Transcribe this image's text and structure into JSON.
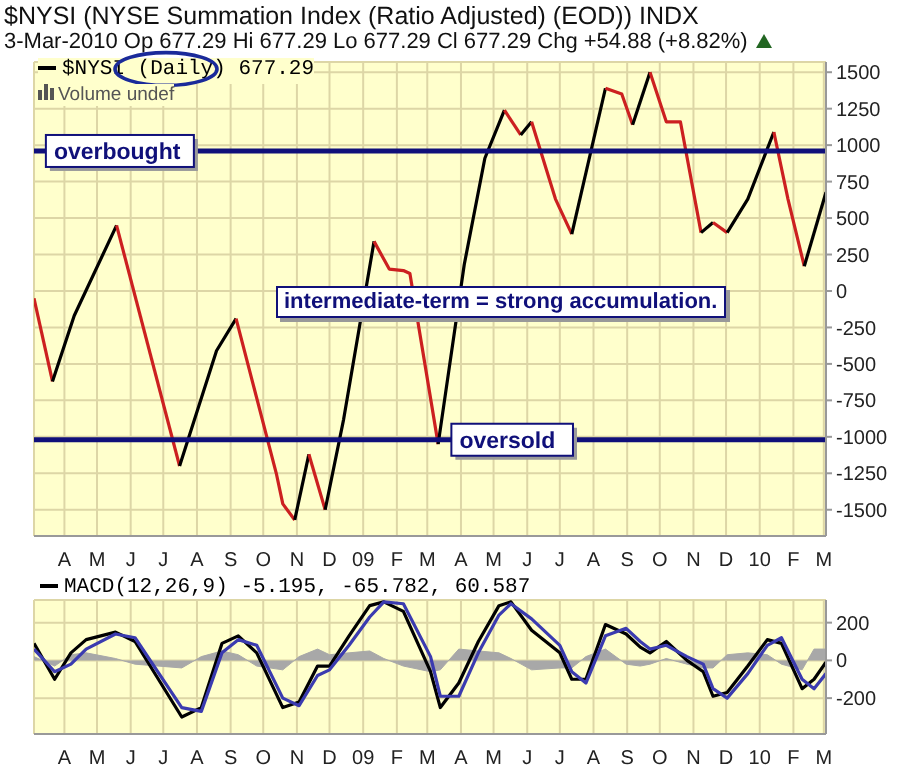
{
  "chart_data": [
    {
      "type": "line",
      "title": "$NYSI (NYSE Summation Index (Ratio Adjusted) (EOD)) INDX",
      "subtitle": "3-Mar-2010 Op 677.29 Hi 677.29 Lo 677.29 Cl 677.29 Chg +54.88 (+8.82%)",
      "annotations": [
        "$NYSI (Daily) 677.29",
        "Volume undef",
        "intermediate-term = strong accumulation."
      ],
      "xlim": [
        "2008-03-04",
        "2010-03-03"
      ],
      "xticks": [
        {
          "value": "2008-04",
          "label": "A"
        },
        {
          "value": "2008-05",
          "label": "M"
        },
        {
          "value": "2008-06",
          "label": "J"
        },
        {
          "value": "2008-07",
          "label": "J"
        },
        {
          "value": "2008-08",
          "label": "A"
        },
        {
          "value": "2008-09",
          "label": "S"
        },
        {
          "value": "2008-10",
          "label": "O"
        },
        {
          "value": "2008-11",
          "label": "N"
        },
        {
          "value": "2008-12",
          "label": "D"
        },
        {
          "value": "2009-01",
          "label": "09"
        },
        {
          "value": "2009-02",
          "label": "F"
        },
        {
          "value": "2009-03",
          "label": "M"
        },
        {
          "value": "2009-04",
          "label": "A"
        },
        {
          "value": "2009-05",
          "label": "M"
        },
        {
          "value": "2009-06",
          "label": "J"
        },
        {
          "value": "2009-07",
          "label": "J"
        },
        {
          "value": "2009-08",
          "label": "A"
        },
        {
          "value": "2009-09",
          "label": "S"
        },
        {
          "value": "2009-10",
          "label": "O"
        },
        {
          "value": "2009-11",
          "label": "N"
        },
        {
          "value": "2009-12",
          "label": "D"
        },
        {
          "value": "2010-01",
          "label": "10"
        },
        {
          "value": "2010-02",
          "label": "F"
        },
        {
          "value": "2010-03",
          "label": "M"
        }
      ],
      "ylim": [
        -1680,
        1570
      ],
      "yticks": [
        -1500,
        -1250,
        -1000,
        -750,
        -500,
        -250,
        0,
        250,
        500,
        750,
        1000,
        1250,
        1500
      ],
      "grid": true,
      "ref_lines": [
        {
          "axis": "y",
          "value": 960,
          "label": "overbought",
          "color": "#10107a"
        },
        {
          "axis": "y",
          "value": -1020,
          "label": "oversold",
          "color": "#10107a"
        }
      ],
      "series": [
        {
          "color": "#cc2020",
          "x": [
            "2008-03-04",
            "2008-03-21"
          ],
          "values": [
            -50,
            -620
          ]
        },
        {
          "color": "#000000",
          "x": [
            "2008-03-21",
            "2008-04-10",
            "2008-05-19"
          ],
          "values": [
            -620,
            -170,
            450
          ]
        },
        {
          "color": "#cc2020",
          "x": [
            "2008-05-19",
            "2008-07-16"
          ],
          "values": [
            450,
            -1200
          ]
        },
        {
          "color": "#000000",
          "x": [
            "2008-07-16",
            "2008-08-19",
            "2008-09-06"
          ],
          "values": [
            -1200,
            -410,
            -190
          ]
        },
        {
          "color": "#cc2020",
          "x": [
            "2008-09-06",
            "2008-10-13",
            "2008-10-19",
            "2008-10-30"
          ],
          "values": [
            -190,
            -1250,
            -1460,
            -1570
          ]
        },
        {
          "color": "#000000",
          "x": [
            "2008-10-30",
            "2008-11-12"
          ],
          "values": [
            -1570,
            -1120
          ]
        },
        {
          "color": "#cc2020",
          "x": [
            "2008-11-12",
            "2008-11-27"
          ],
          "values": [
            -1120,
            -1500
          ]
        },
        {
          "color": "#000000",
          "x": [
            "2008-11-27",
            "2008-12-14",
            "2009-01-11"
          ],
          "values": [
            -1500,
            -880,
            340
          ]
        },
        {
          "color": "#cc2020",
          "x": [
            "2009-01-11",
            "2009-01-25",
            "2009-02-07",
            "2009-02-13",
            "2009-03-11"
          ],
          "values": [
            340,
            150,
            140,
            120,
            -1050
          ]
        },
        {
          "color": "#000000",
          "x": [
            "2009-03-11",
            "2009-04-04",
            "2009-04-23",
            "2009-05-11"
          ],
          "values": [
            -1050,
            180,
            910,
            1240
          ]
        },
        {
          "color": "#cc2020",
          "x": [
            "2009-05-11",
            "2009-05-26"
          ],
          "values": [
            1240,
            1070
          ]
        },
        {
          "color": "#000000",
          "x": [
            "2009-05-26",
            "2009-06-05"
          ],
          "values": [
            1070,
            1160
          ]
        },
        {
          "color": "#cc2020",
          "x": [
            "2009-06-05",
            "2009-06-27",
            "2009-07-12"
          ],
          "values": [
            1160,
            630,
            390
          ]
        },
        {
          "color": "#000000",
          "x": [
            "2009-07-12",
            "2009-08-12"
          ],
          "values": [
            390,
            1390
          ]
        },
        {
          "color": "#cc2020",
          "x": [
            "2009-08-12",
            "2009-08-27",
            "2009-09-06"
          ],
          "values": [
            1390,
            1350,
            1140
          ]
        },
        {
          "color": "#000000",
          "x": [
            "2009-09-06",
            "2009-09-22"
          ],
          "values": [
            1140,
            1500
          ]
        },
        {
          "color": "#cc2020",
          "x": [
            "2009-09-22",
            "2009-10-07",
            "2009-10-20",
            "2009-11-08"
          ],
          "values": [
            1500,
            1160,
            1160,
            400
          ]
        },
        {
          "color": "#000000",
          "x": [
            "2009-11-08",
            "2009-11-19"
          ],
          "values": [
            400,
            470
          ]
        },
        {
          "color": "#cc2020",
          "x": [
            "2009-11-19",
            "2009-12-02"
          ],
          "values": [
            470,
            400
          ]
        },
        {
          "color": "#000000",
          "x": [
            "2009-12-02",
            "2009-12-21",
            "2010-01-14"
          ],
          "values": [
            400,
            630,
            1090
          ]
        },
        {
          "color": "#cc2020",
          "x": [
            "2010-01-14",
            "2010-01-27",
            "2010-02-11"
          ],
          "values": [
            1090,
            630,
            170
          ]
        },
        {
          "color": "#000000",
          "x": [
            "2010-02-11",
            "2010-03-03"
          ],
          "values": [
            170,
            677.29
          ]
        }
      ]
    },
    {
      "type": "line",
      "title": "MACD(12,26,9) -5.195, -65.782, 60.587",
      "xlim": [
        "2008-03-04",
        "2010-03-03"
      ],
      "xticks": [
        {
          "value": "2008-04",
          "label": "A"
        },
        {
          "value": "2008-05",
          "label": "M"
        },
        {
          "value": "2008-06",
          "label": "J"
        },
        {
          "value": "2008-07",
          "label": "J"
        },
        {
          "value": "2008-08",
          "label": "A"
        },
        {
          "value": "2008-09",
          "label": "S"
        },
        {
          "value": "2008-10",
          "label": "O"
        },
        {
          "value": "2008-11",
          "label": "N"
        },
        {
          "value": "2008-12",
          "label": "D"
        },
        {
          "value": "2009-01",
          "label": "09"
        },
        {
          "value": "2009-02",
          "label": "F"
        },
        {
          "value": "2009-03",
          "label": "M"
        },
        {
          "value": "2009-04",
          "label": "A"
        },
        {
          "value": "2009-05",
          "label": "M"
        },
        {
          "value": "2009-06",
          "label": "J"
        },
        {
          "value": "2009-07",
          "label": "J"
        },
        {
          "value": "2009-08",
          "label": "A"
        },
        {
          "value": "2009-09",
          "label": "S"
        },
        {
          "value": "2009-10",
          "label": "O"
        },
        {
          "value": "2009-11",
          "label": "N"
        },
        {
          "value": "2009-12",
          "label": "D"
        },
        {
          "value": "2010-01",
          "label": "10"
        },
        {
          "value": "2010-02",
          "label": "F"
        },
        {
          "value": "2010-03",
          "label": "M"
        }
      ],
      "ylim": [
        -390,
        320
      ],
      "yticks": [
        -200,
        0,
        200
      ],
      "grid": true,
      "x": [
        "2008-03-04",
        "2008-03-23",
        "2008-04-07",
        "2008-04-21",
        "2008-05-18",
        "2008-06-05",
        "2008-07-18",
        "2008-08-05",
        "2008-08-24",
        "2008-09-08",
        "2008-09-25",
        "2008-10-19",
        "2008-11-03",
        "2008-11-20",
        "2008-12-01",
        "2008-12-19",
        "2009-01-07",
        "2009-01-20",
        "2009-02-07",
        "2009-03-04",
        "2009-03-13",
        "2009-03-30",
        "2009-04-17",
        "2009-05-06",
        "2009-05-17",
        "2009-06-05",
        "2009-07-01",
        "2009-07-12",
        "2009-07-25",
        "2009-08-12",
        "2009-08-31",
        "2009-09-13",
        "2009-09-22",
        "2009-10-07",
        "2009-10-26",
        "2009-11-10",
        "2009-11-19",
        "2009-12-02",
        "2009-12-21",
        "2010-01-08",
        "2010-01-21",
        "2010-02-09",
        "2010-02-20",
        "2010-03-03"
      ],
      "series": [
        {
          "color": "#000000",
          "values": [
            90,
            -100,
            40,
            110,
            150,
            100,
            -300,
            -250,
            90,
            130,
            40,
            -250,
            -220,
            -30,
            -30,
            130,
            290,
            310,
            260,
            -60,
            -250,
            -120,
            100,
            290,
            310,
            160,
            40,
            -100,
            -100,
            190,
            140,
            70,
            40,
            100,
            0,
            -60,
            -190,
            -170,
            -30,
            110,
            90,
            -150,
            -100,
            -10
          ]
        },
        {
          "color": "#3b3bb0",
          "values": [
            60,
            -60,
            -20,
            60,
            140,
            120,
            -250,
            -270,
            40,
            110,
            80,
            -200,
            -240,
            -80,
            -50,
            80,
            230,
            310,
            300,
            20,
            -190,
            -190,
            40,
            240,
            300,
            220,
            80,
            -60,
            -120,
            130,
            170,
            100,
            60,
            80,
            20,
            -20,
            -150,
            -200,
            -70,
            80,
            120,
            -100,
            -150,
            -70
          ]
        },
        {
          "type": "area",
          "color": "#a8a8a8",
          "values": [
            20,
            -30,
            30,
            40,
            10,
            -20,
            -40,
            20,
            50,
            30,
            -30,
            -50,
            20,
            60,
            30,
            40,
            50,
            10,
            -30,
            -60,
            -50,
            60,
            50,
            40,
            10,
            -50,
            -40,
            -40,
            20,
            60,
            -20,
            -30,
            -20,
            10,
            -20,
            -40,
            -40,
            30,
            40,
            30,
            -20,
            -50,
            60,
            60
          ]
        }
      ]
    }
  ]
}
